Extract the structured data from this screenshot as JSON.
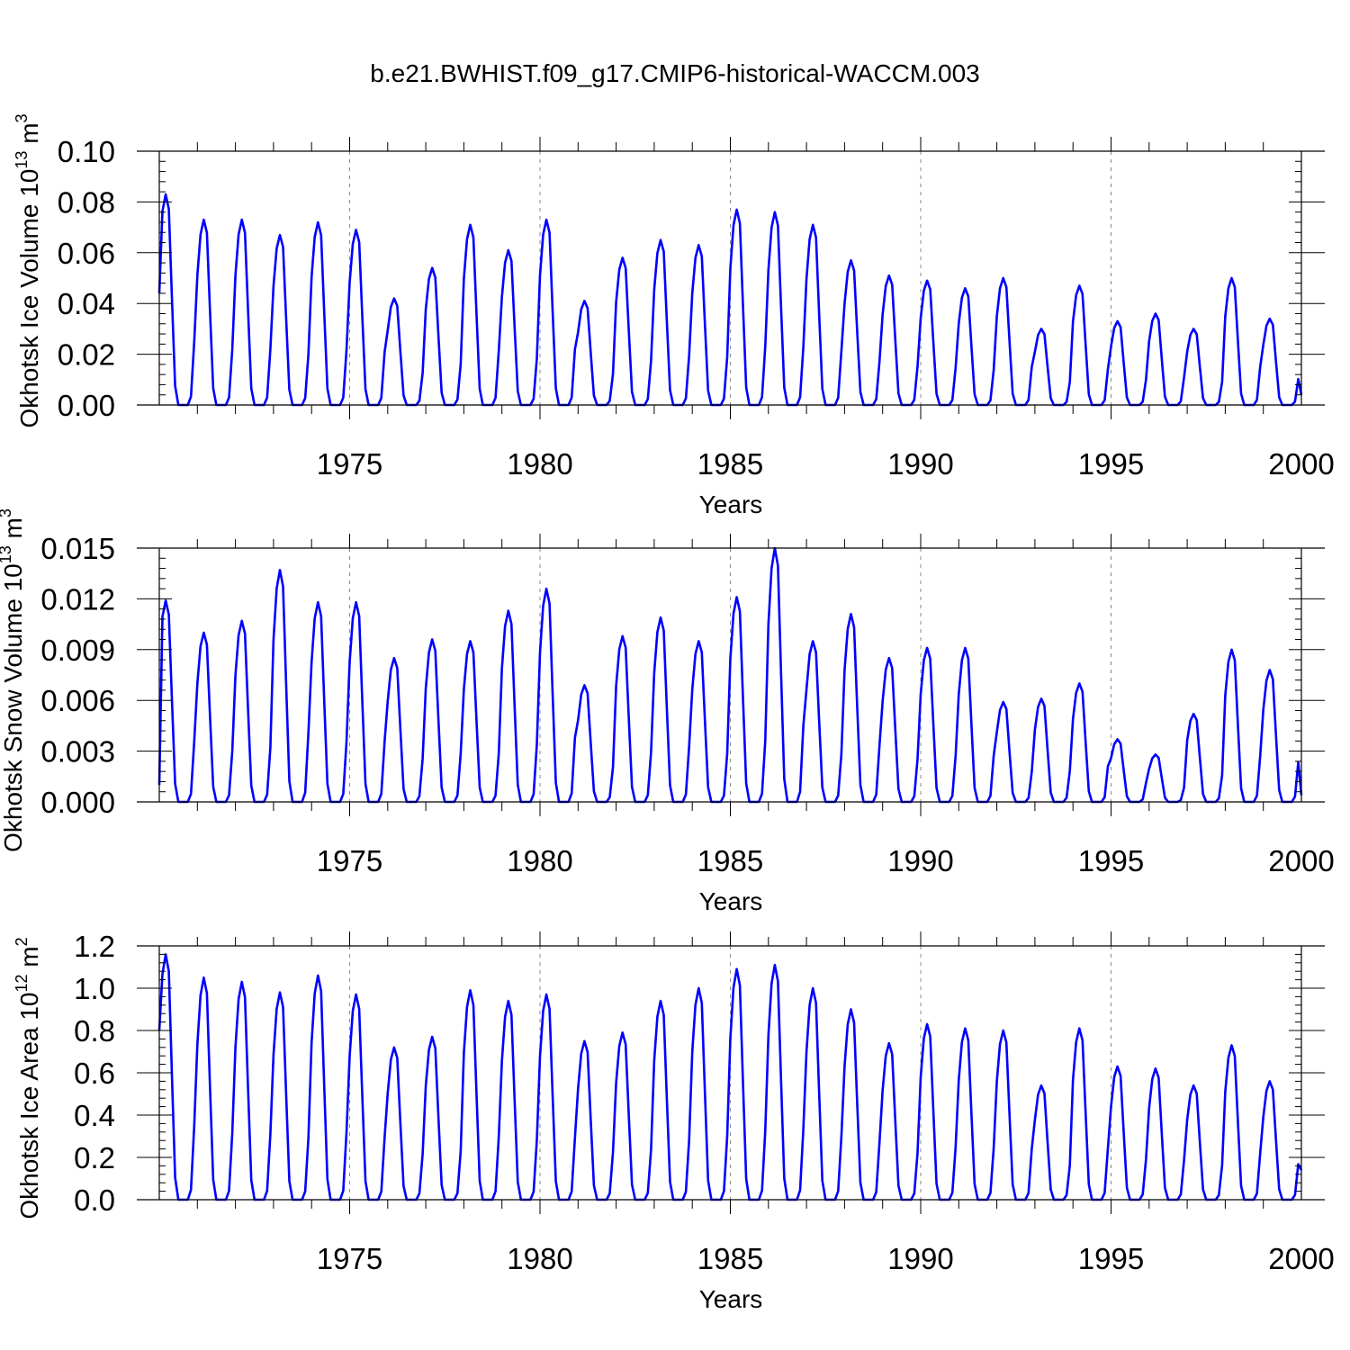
{
  "title": "b.e21.BWHIST.f09_g17.CMIP6-historical-WACCM.003",
  "style": {
    "line_color": "#0000ff",
    "grid_color": "#888888"
  },
  "chart_data": [
    {
      "type": "line",
      "ylabel": "Okhotsk Ice Volume 10",
      "ylabel_exp": "13",
      "ylabel_unit": " m",
      "ylabel_unit_exp": "3",
      "xlabel": "Years",
      "xlim": [
        1970,
        2000
      ],
      "ylim": [
        0,
        0.1
      ],
      "yticks": [
        "0.00",
        "0.02",
        "0.04",
        "0.06",
        "0.08",
        "0.10"
      ],
      "xticks": [
        "1975",
        "1980",
        "1985",
        "1990",
        "1995",
        "2000"
      ],
      "grid": "vertical dashed at major x ticks",
      "seasonal_peaks": [
        0.083,
        0.073,
        0.073,
        0.067,
        0.072,
        0.069,
        0.042,
        0.054,
        0.071,
        0.061,
        0.073,
        0.041,
        0.058,
        0.065,
        0.063,
        0.077,
        0.076,
        0.071,
        0.057,
        0.051,
        0.049,
        0.046,
        0.05,
        0.03,
        0.047,
        0.033,
        0.036,
        0.03,
        0.05,
        0.034
      ],
      "start_value": 0.044,
      "end_value": 0.004
    },
    {
      "type": "line",
      "ylabel": "Okhotsk Snow Volume 10",
      "ylabel_exp": "13",
      "ylabel_unit": " m",
      "ylabel_unit_exp": "3",
      "xlabel": "Years",
      "xlim": [
        1970,
        2000
      ],
      "ylim": [
        0,
        0.015
      ],
      "yticks": [
        "0.000",
        "0.003",
        "0.006",
        "0.009",
        "0.012",
        "0.015"
      ],
      "xticks": [
        "1975",
        "1980",
        "1985",
        "1990",
        "1995",
        "2000"
      ],
      "grid": "vertical dashed at major x ticks",
      "seasonal_peaks": [
        0.0119,
        0.01,
        0.0107,
        0.0137,
        0.0118,
        0.0118,
        0.0085,
        0.0096,
        0.0095,
        0.0113,
        0.0126,
        0.0069,
        0.0098,
        0.0109,
        0.0095,
        0.0121,
        0.015,
        0.0095,
        0.0111,
        0.0085,
        0.0091,
        0.0091,
        0.0059,
        0.0061,
        0.007,
        0.0037,
        0.0028,
        0.0052,
        0.009,
        0.0078
      ],
      "start_value": 0.001,
      "end_value": 0.0004
    },
    {
      "type": "line",
      "ylabel": "Okhotsk Ice Area 10",
      "ylabel_exp": "12",
      "ylabel_unit": " m",
      "ylabel_unit_exp": "2",
      "xlabel": "Years",
      "xlim": [
        1970,
        2000
      ],
      "ylim": [
        0,
        1.2
      ],
      "yticks": [
        "0.0",
        "0.2",
        "0.4",
        "0.6",
        "0.8",
        "1.0",
        "1.2"
      ],
      "xticks": [
        "1975",
        "1980",
        "1985",
        "1990",
        "1995",
        "2000"
      ],
      "grid": "vertical dashed at major x ticks",
      "seasonal_peaks": [
        1.16,
        1.05,
        1.03,
        0.98,
        1.06,
        0.97,
        0.72,
        0.77,
        0.99,
        0.94,
        0.97,
        0.75,
        0.79,
        0.94,
        1.0,
        1.09,
        1.11,
        1.0,
        0.9,
        0.74,
        0.83,
        0.81,
        0.8,
        0.54,
        0.81,
        0.63,
        0.62,
        0.54,
        0.73,
        0.56
      ],
      "start_value": 0.8,
      "end_value": 0.14
    }
  ]
}
